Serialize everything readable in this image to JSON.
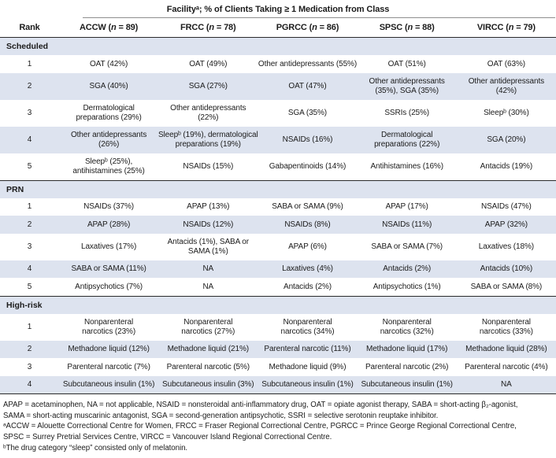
{
  "colors": {
    "band": "#dde3ef",
    "rule_dark": "#2b2b2b",
    "rule_light": "#8e8e8e",
    "ink": "#1b1b1b"
  },
  "table": {
    "title": "Facilityᵃ; % of Clients Taking ≥ 1 Medication from Class",
    "rank_header": "Rank",
    "columns": [
      [
        "ACCW (",
        "n",
        " = 89)"
      ],
      [
        "FRCC (",
        "n",
        " = 78)"
      ],
      [
        "PGRCC (",
        "n",
        " = 86)"
      ],
      [
        "SPSC (",
        "n",
        " = 88)"
      ],
      [
        "VIRCC (",
        "n",
        " = 79)"
      ]
    ],
    "sections": [
      {
        "label": "Scheduled",
        "rows": [
          {
            "rank": "1",
            "cells": [
              "OAT (42%)",
              "OAT (49%)",
              "Other antidepressants (55%)",
              "OAT (51%)",
              "OAT (63%)"
            ]
          },
          {
            "rank": "2",
            "cells": [
              "SGA (40%)",
              "SGA (27%)",
              "OAT (47%)",
              "Other antidepressants\n(35%), SGA (35%)",
              "Other antidepressants\n(42%)"
            ]
          },
          {
            "rank": "3",
            "cells": [
              "Dermatological\npreparations (29%)",
              "Other antidepressants\n(22%)",
              "SGA (35%)",
              "SSRIs (25%)",
              "Sleepᵇ (30%)"
            ]
          },
          {
            "rank": "4",
            "cells": [
              "Other antidepressants\n(26%)",
              "Sleepᵇ (19%), dermatological\npreparations (19%)",
              "NSAIDs (16%)",
              "Dermatological\npreparations (22%)",
              "SGA (20%)"
            ]
          },
          {
            "rank": "5",
            "cells": [
              "Sleepᵇ (25%),\nantihistamines (25%)",
              "NSAIDs (15%)",
              "Gabapentinoids (14%)",
              "Antihistamines (16%)",
              "Antacids (19%)"
            ]
          }
        ]
      },
      {
        "label": "PRN",
        "rows": [
          {
            "rank": "1",
            "cells": [
              "NSAIDs (37%)",
              "APAP (13%)",
              "SABA or SAMA (9%)",
              "APAP (17%)",
              "NSAIDs (47%)"
            ]
          },
          {
            "rank": "2",
            "cells": [
              "APAP (28%)",
              "NSAIDs (12%)",
              "NSAIDs (8%)",
              "NSAIDs (11%)",
              "APAP (32%)"
            ]
          },
          {
            "rank": "3",
            "cells": [
              "Laxatives (17%)",
              "Antacids (1%), SABA or\nSAMA (1%)",
              "APAP (6%)",
              "SABA or SAMA (7%)",
              "Laxatives (18%)"
            ]
          },
          {
            "rank": "4",
            "cells": [
              "SABA or SAMA (11%)",
              "NA",
              "Laxatives (4%)",
              "Antacids (2%)",
              "Antacids (10%)"
            ]
          },
          {
            "rank": "5",
            "cells": [
              "Antipsychotics (7%)",
              "NA",
              "Antacids (2%)",
              "Antipsychotics (1%)",
              "SABA or SAMA (8%)"
            ]
          }
        ]
      },
      {
        "label": "High-risk",
        "rows": [
          {
            "rank": "1",
            "cells": [
              "Nonparenteral\nnarcotics (23%)",
              "Nonparenteral\nnarcotics (27%)",
              "Nonparenteral\nnarcotics (34%)",
              "Nonparenteral\nnarcotics (32%)",
              "Nonparenteral\nnarcotics (33%)"
            ]
          },
          {
            "rank": "2",
            "cells": [
              "Methadone liquid (12%)",
              "Methadone liquid (21%)",
              "Parenteral narcotic (11%)",
              "Methadone liquid (17%)",
              "Methadone liquid (28%)"
            ]
          },
          {
            "rank": "3",
            "cells": [
              "Parenteral narcotic (7%)",
              "Parenteral narcotic (5%)",
              "Methadone liquid (9%)",
              "Parenteral narcotic (2%)",
              "Parenteral narcotic (4%)"
            ]
          },
          {
            "rank": "4",
            "cells": [
              "Subcutaneous insulin (1%)",
              "Subcutaneous insulin (3%)",
              "Subcutaneous insulin (1%)",
              "Subcutaneous insulin (1%)",
              "NA"
            ]
          }
        ]
      }
    ]
  },
  "footnotes": {
    "lines": [
      "APAP = acetaminophen, NA = not applicable, NSAID = nonsteroidal anti-inflammatory drug, OAT = opiate agonist therapy, SABA = short-acting β₂-agonist,",
      "SAMA = short-acting muscarinic antagonist, SGA = second-generation antipsychotic, SSRI = selective serotonin reuptake inhibitor.",
      "ᵃACCW = Alouette Correctional Centre for Women, FRCC = Fraser Regional Correctional Centre, PGRCC = Prince George Regional Correctional Centre,",
      "SPSC = Surrey Pretrial Services Centre, VIRCC = Vancouver Island Regional Correctional Centre.",
      "ᵇThe drug category “sleep” consisted only of melatonin."
    ]
  }
}
